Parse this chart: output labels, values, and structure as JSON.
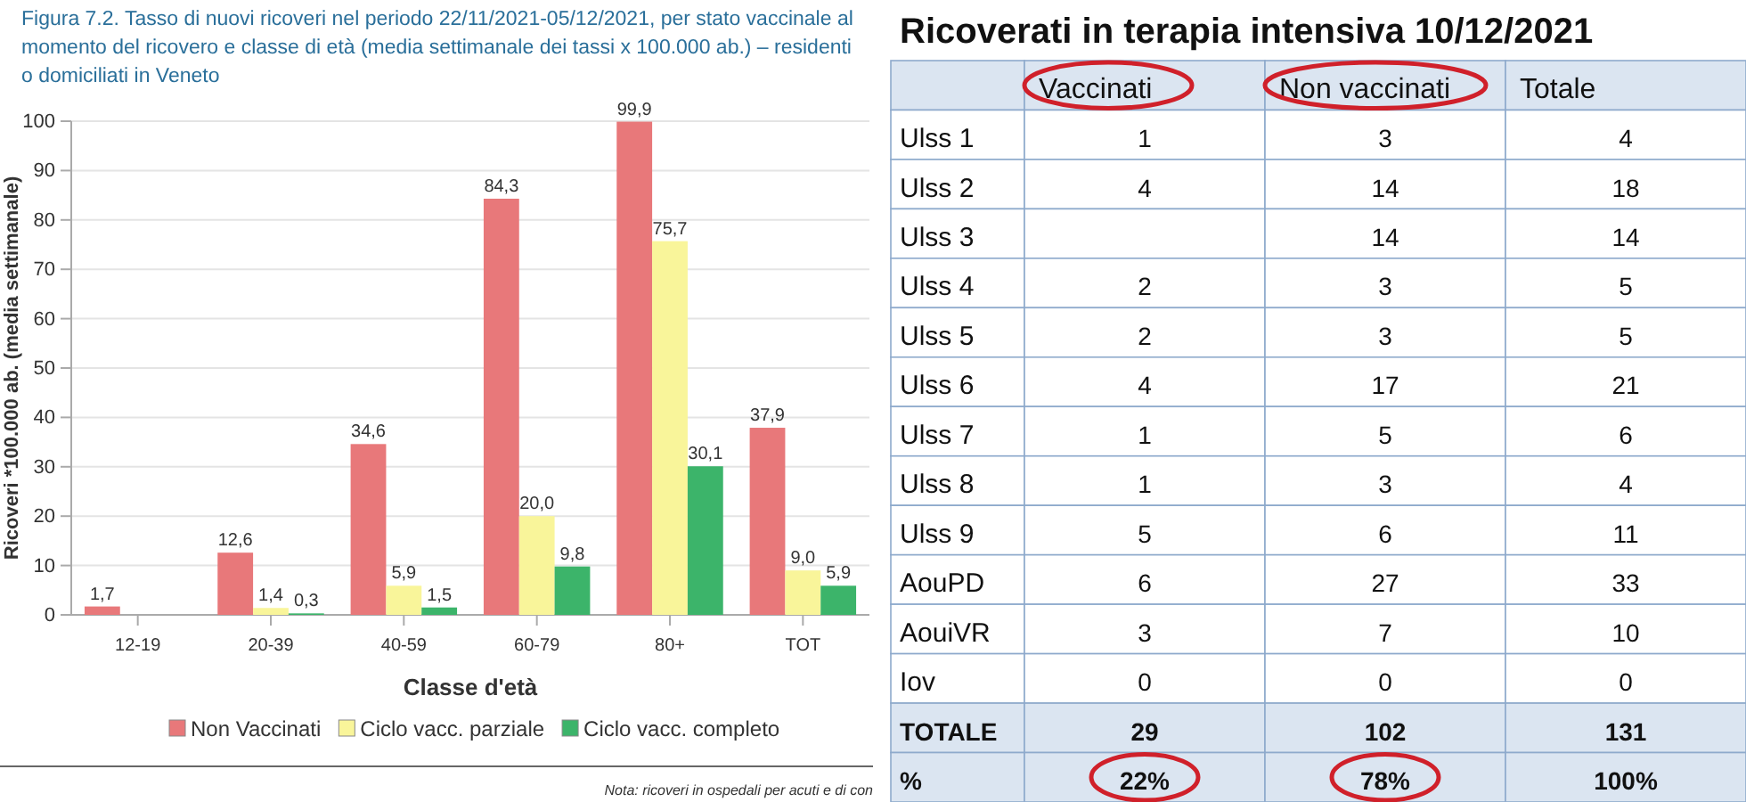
{
  "chart_data": [
    {
      "type": "bar",
      "title": "Figura 7.2. Tasso di nuovi ricoveri nel periodo 22/11/2021-05/12/2021, per stato vaccinale al momento del ricovero e classe di età (media settimanale dei tassi x 100.000 ab.) – residenti o domiciliati in Veneto",
      "xlabel": "Classe d'età",
      "ylabel": "Ricoveri *100.000 ab. (media settimanale)",
      "categories": [
        "12-19",
        "20-39",
        "40-59",
        "60-79",
        "80+",
        "TOT"
      ],
      "series": [
        {
          "name": "Non Vaccinati",
          "color": "#e8787a",
          "values": [
            1.7,
            12.6,
            34.6,
            84.3,
            99.9,
            37.9
          ]
        },
        {
          "name": "Ciclo vacc. parziale",
          "color": "#f9f59a",
          "values": [
            null,
            1.4,
            5.9,
            20.0,
            75.7,
            9.0
          ]
        },
        {
          "name": "Ciclo vacc. completo",
          "color": "#3cb46a",
          "values": [
            null,
            0.3,
            1.5,
            9.8,
            30.1,
            5.9
          ]
        }
      ],
      "value_labels": [
        [
          "1,7",
          "12,6",
          "34,6",
          "84,3",
          "99,9",
          "37,9"
        ],
        [
          null,
          "1,4",
          "5,9",
          "20,0",
          "75,7",
          "9,0"
        ],
        [
          null,
          "0,3",
          "1,5",
          "9,8",
          "30,1",
          "5,9"
        ]
      ],
      "ylim": [
        0,
        100
      ],
      "yticks": [
        0,
        10,
        20,
        30,
        40,
        50,
        60,
        70,
        80,
        90,
        100
      ],
      "grid": "y",
      "legend": "bottom",
      "annotations": [
        "Nota: ricoveri in ospedali per acuti e di con"
      ]
    },
    {
      "type": "heatmap",
      "title": "Ricoverati in terapia intensiva 10/12/2021",
      "categories": [
        "Vaccinati",
        "Non vaccinati",
        "Totale"
      ],
      "y_categories": [
        "Ulss 1",
        "Ulss 2",
        "Ulss 3",
        "Ulss 4",
        "Ulss 5",
        "Ulss 6",
        "Ulss 7",
        "Ulss 8",
        "Ulss 9",
        "AouPD",
        "AouiVR",
        "Iov",
        "TOTALE",
        "%"
      ],
      "cells": [
        [
          1,
          3,
          4
        ],
        [
          4,
          14,
          18
        ],
        [
          null,
          14,
          14
        ],
        [
          2,
          3,
          5
        ],
        [
          2,
          3,
          5
        ],
        [
          4,
          17,
          21
        ],
        [
          1,
          5,
          6
        ],
        [
          1,
          3,
          4
        ],
        [
          5,
          6,
          11
        ],
        [
          6,
          27,
          33
        ],
        [
          3,
          7,
          10
        ],
        [
          0,
          0,
          0
        ],
        [
          29,
          102,
          131
        ],
        [
          22,
          78,
          100
        ]
      ],
      "cell_labels": [
        [
          "1",
          "3",
          "4"
        ],
        [
          "4",
          "14",
          "18"
        ],
        [
          null,
          "14",
          "14"
        ],
        [
          "2",
          "3",
          "5"
        ],
        [
          "2",
          "3",
          "5"
        ],
        [
          "4",
          "17",
          "21"
        ],
        [
          "1",
          "5",
          "6"
        ],
        [
          "1",
          "3",
          "4"
        ],
        [
          "5",
          "6",
          "11"
        ],
        [
          "6",
          "27",
          "33"
        ],
        [
          "3",
          "7",
          "10"
        ],
        [
          "0",
          "0",
          "0"
        ],
        [
          "29",
          "102",
          "131"
        ],
        [
          "22%",
          "78%",
          "100%"
        ]
      ]
    }
  ]
}
